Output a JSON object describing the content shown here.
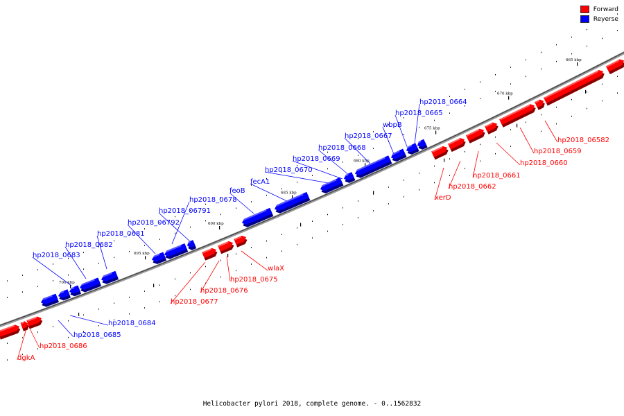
{
  "legend": {
    "forward": {
      "label": "Forward",
      "color": "#ff0000"
    },
    "reverse": {
      "label": "Reverse",
      "color": "#0000ff"
    }
  },
  "caption": "Helicobacter pylori 2018, complete genome. - 0..1562832",
  "scale_labels": [
    "665 kbp",
    "670 kbp",
    "675 kbp",
    "680 kbp",
    "685 kbp",
    "690 kbp",
    "695 kbp",
    "700 kbp"
  ],
  "genes_forward": [
    "hp2018_06582",
    "hp2018_0659",
    "hp2018_0660",
    "hp2018_0661",
    "hp2018_0662",
    "xerD",
    "wlaX",
    "hp2018_0675",
    "hp2018_0676",
    "hp2018_0677",
    "hp2018_0686",
    "dgkA"
  ],
  "genes_reverse": [
    "hp2018_0664",
    "hp2018_0665",
    "wbpB",
    "hp2018_0667",
    "hp2018_0668",
    "hp2018_0669",
    "hp2018_0670",
    "fecA1",
    "feoB",
    "hp2018_0678",
    "hp2018_06791",
    "hp2018_06792",
    "hp2018_0681",
    "hp2018_0682",
    "hp2018_0683",
    "hp2018_0684",
    "hp2018_0685"
  ]
}
